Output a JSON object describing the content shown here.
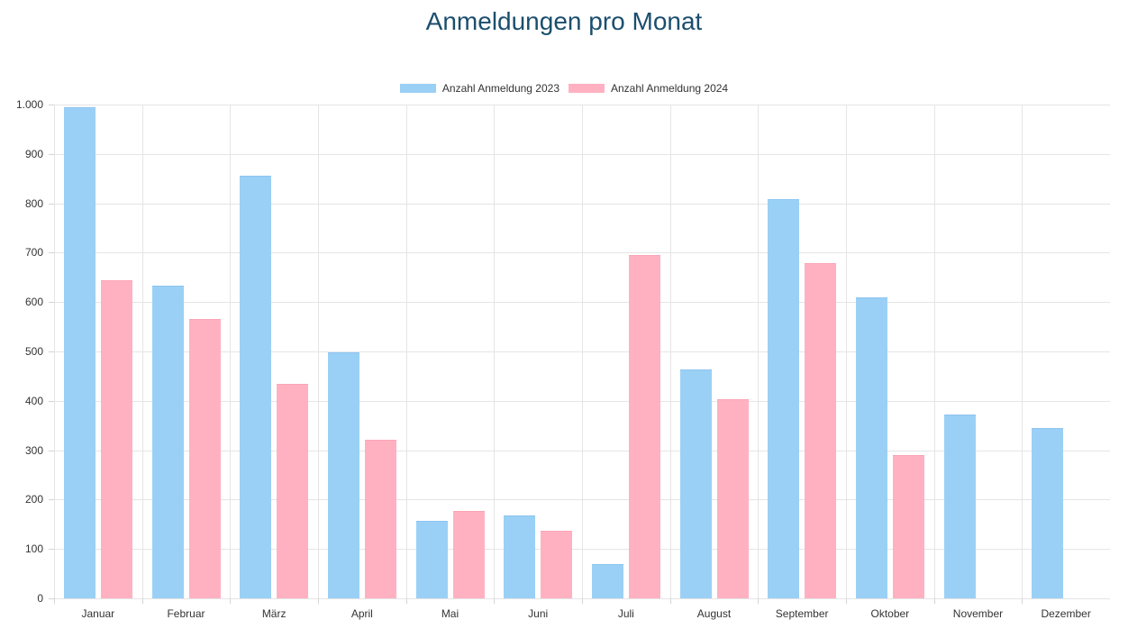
{
  "colors": {
    "title": "#1b4e6d",
    "axis_text": "#333333",
    "gridline": "#e5e5e5",
    "tick": "#d4d4d4",
    "background": "#ffffff"
  },
  "chart_data": {
    "type": "bar",
    "title": "Anmeldungen pro Monat",
    "categories": [
      "Januar",
      "Februar",
      "März",
      "April",
      "Mai",
      "Juni",
      "Juli",
      "August",
      "September",
      "Oktober",
      "November",
      "Dezember"
    ],
    "series": [
      {
        "name": "Anzahl Anmeldung 2023",
        "color": "#9ad0f5",
        "border_color": "#8cc4f0",
        "values": [
          995,
          634,
          855,
          498,
          157,
          168,
          70,
          463,
          809,
          610,
          373,
          344
        ]
      },
      {
        "name": "Anzahl Anmeldung 2024",
        "color": "#ffb1c1",
        "border_color": "#fba4b6",
        "values": [
          644,
          565,
          435,
          322,
          177,
          137,
          696,
          403,
          678,
          290,
          0,
          0
        ]
      }
    ],
    "xlabel": "",
    "ylabel": "",
    "ylim": [
      0,
      1000
    ],
    "ytick_step": 100,
    "ytick_labels": [
      "0",
      "100",
      "200",
      "300",
      "400",
      "500",
      "600",
      "700",
      "800",
      "900",
      "1.000"
    ],
    "grid": true,
    "legend_position": "top"
  }
}
